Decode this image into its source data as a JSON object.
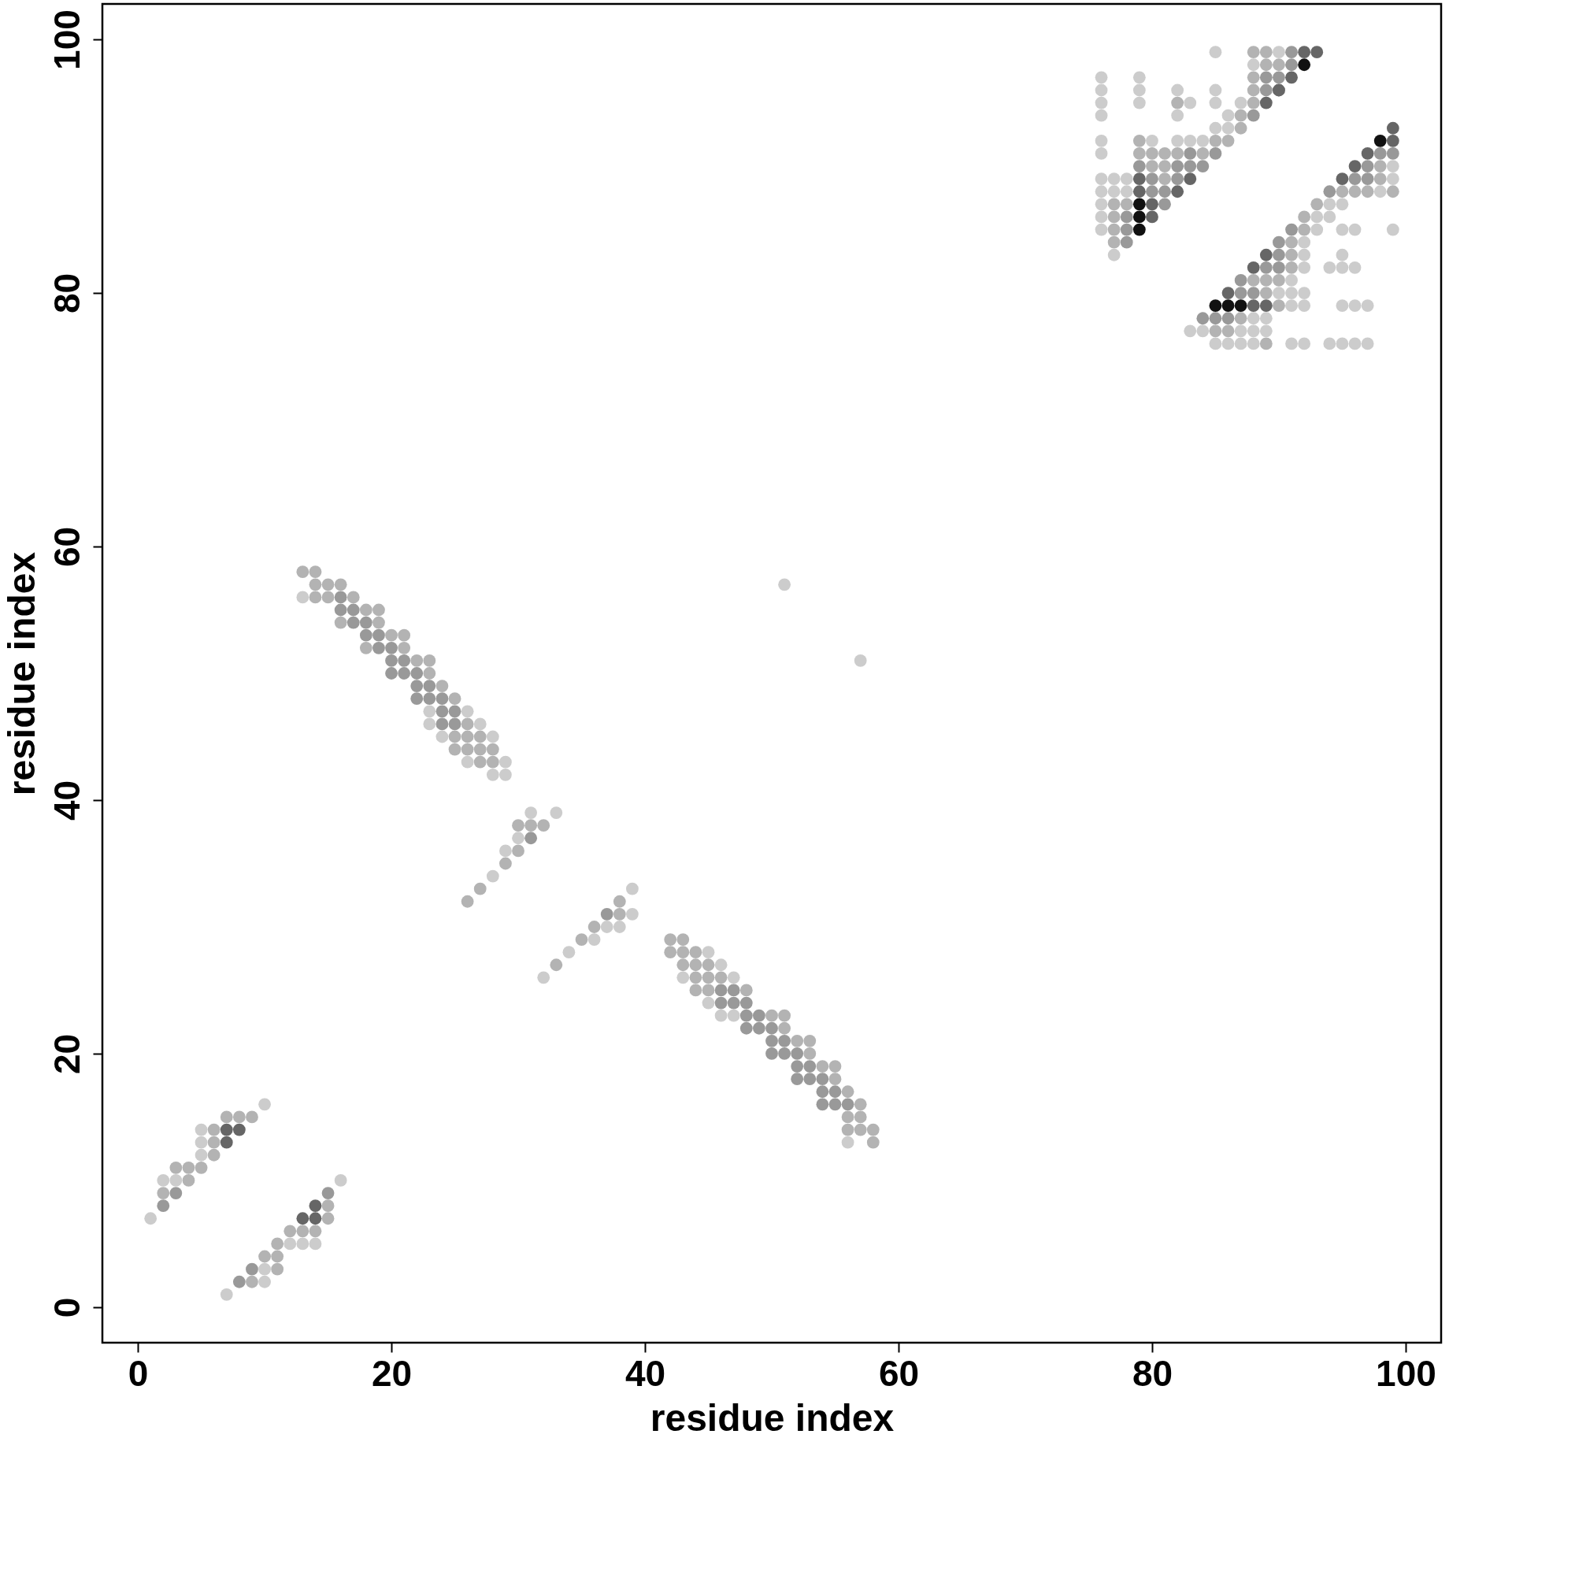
{
  "chart_data": {
    "type": "scatter",
    "xlabel": "residue index",
    "ylabel": "residue index",
    "xlim": [
      -2.8,
      102.8
    ],
    "ylim": [
      -2.8,
      102.8
    ],
    "xticks": [
      0,
      20,
      40,
      60,
      80,
      100
    ],
    "yticks": [
      0,
      20,
      40,
      60,
      80,
      100
    ],
    "grid": false,
    "legend": false,
    "marker": "circle",
    "series": [
      {
        "color": "#cccccc",
        "x": [
          10,
          5,
          5,
          5,
          2,
          3,
          1,
          16,
          12,
          13,
          14,
          10,
          10,
          7,
          13,
          23,
          26,
          23,
          27,
          24,
          28,
          26,
          29,
          28,
          29,
          31,
          33,
          30,
          29,
          28,
          32,
          34,
          36,
          37,
          38,
          39,
          39,
          45,
          46,
          43,
          47,
          45,
          46,
          47,
          56,
          51,
          57,
          85,
          76,
          79,
          76,
          79,
          82,
          85,
          76,
          79,
          83,
          85,
          87,
          76,
          82,
          86,
          85,
          86,
          76,
          80,
          82,
          83,
          84,
          76,
          76,
          77,
          78,
          76,
          77,
          78,
          76,
          76,
          76,
          77,
          88,
          90,
          99,
          99,
          98,
          94,
          95,
          93,
          94,
          93,
          95,
          96,
          99,
          92,
          92,
          95,
          92,
          94,
          95,
          96,
          91,
          90,
          91,
          92,
          91,
          92,
          95,
          96,
          97,
          88,
          89,
          83,
          84,
          87,
          88,
          89,
          85,
          86,
          87,
          88,
          91,
          92,
          94,
          95,
          96,
          97
        ],
        "values": [
          16,
          14,
          13,
          12,
          10,
          10,
          7,
          10,
          5,
          5,
          5,
          3,
          2,
          1,
          56,
          47,
          47,
          46,
          46,
          45,
          45,
          43,
          43,
          42,
          42,
          39,
          39,
          37,
          36,
          34,
          26,
          28,
          29,
          30,
          30,
          31,
          33,
          28,
          27,
          26,
          26,
          24,
          23,
          23,
          13,
          57,
          51,
          99,
          97,
          97,
          96,
          96,
          96,
          96,
          95,
          95,
          95,
          95,
          95,
          94,
          94,
          94,
          93,
          93,
          92,
          92,
          92,
          92,
          92,
          91,
          89,
          89,
          89,
          88,
          88,
          88,
          87,
          86,
          85,
          83,
          98,
          99,
          90,
          89,
          88,
          87,
          87,
          86,
          86,
          85,
          85,
          85,
          85,
          84,
          83,
          83,
          82,
          82,
          82,
          82,
          81,
          80,
          80,
          80,
          79,
          79,
          79,
          79,
          79,
          78,
          78,
          77,
          77,
          77,
          77,
          77,
          76,
          76,
          76,
          76,
          76,
          76,
          76,
          76,
          76,
          76
        ]
      },
      {
        "color": "#b3b3b3",
        "x": [
          7,
          8,
          9,
          6,
          6,
          6,
          3,
          4,
          5,
          4,
          2,
          15,
          15,
          12,
          13,
          14,
          11,
          10,
          11,
          11,
          9,
          13,
          14,
          14,
          15,
          16,
          14,
          15,
          17,
          18,
          19,
          16,
          19,
          20,
          21,
          18,
          21,
          22,
          23,
          23,
          24,
          25,
          26,
          25,
          26,
          27,
          25,
          26,
          27,
          28,
          27,
          28,
          30,
          31,
          32,
          30,
          29,
          27,
          26,
          33,
          35,
          36,
          38,
          38,
          42,
          43,
          42,
          43,
          44,
          43,
          44,
          45,
          44,
          45,
          46,
          44,
          45,
          48,
          50,
          51,
          51,
          52,
          53,
          53,
          54,
          55,
          55,
          56,
          57,
          56,
          57,
          56,
          57,
          58,
          58,
          88,
          89,
          89,
          90,
          88,
          88,
          82,
          88,
          87,
          87,
          79,
          85,
          86,
          79,
          80,
          81,
          82,
          84,
          80,
          81,
          81,
          77,
          78,
          77,
          77,
          77,
          98,
          98,
          95,
          96,
          97,
          99,
          93,
          92,
          92,
          91,
          91,
          91,
          88,
          89,
          90,
          89,
          90,
          87,
          85,
          86,
          89
        ],
        "values": [
          15,
          15,
          15,
          14,
          13,
          12,
          11,
          11,
          11,
          10,
          9,
          8,
          7,
          6,
          6,
          6,
          5,
          4,
          4,
          3,
          2,
          58,
          58,
          57,
          57,
          57,
          56,
          56,
          56,
          55,
          55,
          54,
          54,
          53,
          53,
          52,
          52,
          51,
          51,
          50,
          49,
          48,
          46,
          45,
          45,
          45,
          44,
          44,
          44,
          44,
          43,
          43,
          38,
          38,
          38,
          36,
          35,
          33,
          32,
          27,
          29,
          30,
          31,
          32,
          29,
          29,
          28,
          28,
          28,
          27,
          27,
          27,
          26,
          26,
          26,
          25,
          25,
          25,
          23,
          23,
          22,
          21,
          21,
          20,
          19,
          19,
          18,
          17,
          16,
          15,
          15,
          14,
          14,
          14,
          13,
          99,
          99,
          98,
          98,
          97,
          96,
          95,
          95,
          94,
          93,
          92,
          92,
          92,
          91,
          91,
          91,
          91,
          91,
          90,
          90,
          89,
          87,
          87,
          86,
          85,
          84,
          90,
          89,
          88,
          88,
          88,
          88,
          87,
          86,
          85,
          84,
          83,
          82,
          81,
          81,
          81,
          80,
          79,
          78,
          77,
          77,
          76
        ]
      },
      {
        "color": "#999999",
        "x": [
          3,
          2,
          15,
          9,
          8,
          16,
          16,
          17,
          17,
          18,
          18,
          19,
          19,
          20,
          20,
          21,
          20,
          21,
          22,
          22,
          23,
          22,
          23,
          24,
          24,
          25,
          24,
          25,
          31,
          37,
          46,
          47,
          46,
          47,
          48,
          48,
          49,
          48,
          49,
          50,
          50,
          51,
          50,
          51,
          52,
          52,
          53,
          52,
          53,
          54,
          54,
          55,
          54,
          55,
          56,
          91,
          91,
          89,
          90,
          89,
          90,
          88,
          83,
          85,
          79,
          82,
          83,
          84,
          80,
          82,
          80,
          81,
          81,
          78,
          78,
          78,
          98,
          99,
          97,
          96,
          97,
          94,
          91,
          90,
          90,
          89,
          90,
          87,
          87,
          88,
          84,
          85,
          86
        ],
        "values": [
          9,
          8,
          9,
          3,
          2,
          56,
          55,
          55,
          54,
          54,
          53,
          53,
          52,
          52,
          51,
          51,
          50,
          50,
          50,
          49,
          49,
          48,
          48,
          48,
          47,
          47,
          46,
          46,
          37,
          31,
          25,
          25,
          24,
          24,
          24,
          23,
          23,
          22,
          22,
          22,
          21,
          21,
          20,
          20,
          20,
          19,
          19,
          18,
          18,
          18,
          17,
          17,
          16,
          16,
          16,
          99,
          98,
          97,
          97,
          96,
          96,
          94,
          91,
          91,
          90,
          90,
          90,
          90,
          89,
          89,
          88,
          88,
          87,
          86,
          85,
          84,
          91,
          91,
          90,
          89,
          89,
          88,
          85,
          84,
          83,
          82,
          82,
          81,
          80,
          80,
          78,
          78,
          78
        ]
      },
      {
        "color": "#666666",
        "x": [
          7,
          8,
          7,
          14,
          13,
          14,
          92,
          93,
          91,
          90,
          89,
          79,
          83,
          79,
          82,
          80,
          80,
          99,
          99,
          97,
          96,
          95,
          89,
          88,
          86,
          88,
          89
        ],
        "values": [
          14,
          14,
          13,
          8,
          7,
          7,
          99,
          99,
          97,
          96,
          95,
          89,
          89,
          88,
          88,
          87,
          86,
          93,
          92,
          91,
          90,
          89,
          83,
          82,
          80,
          79,
          79
        ]
      },
      {
        "color": "#111111",
        "x": [
          92,
          79,
          79,
          79,
          98,
          85,
          86,
          87
        ],
        "values": [
          98,
          87,
          86,
          85,
          92,
          79,
          79,
          79
        ]
      }
    ]
  }
}
